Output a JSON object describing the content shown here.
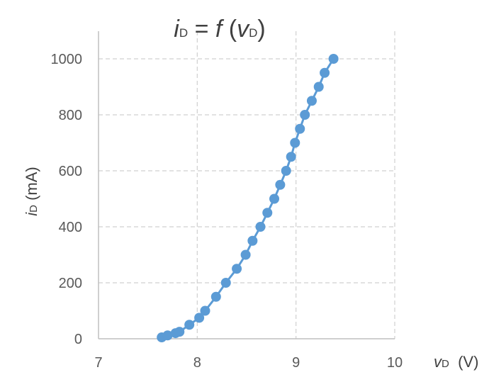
{
  "chart_data": {
    "type": "scatter",
    "title": {
      "var": "i",
      "sub": "D",
      "rest": " = ",
      "fn": "f",
      "arg_open": " (",
      "arg_var": "v",
      "arg_sub": "D",
      "arg_close": ")"
    },
    "xlabel": {
      "var": "v",
      "sub": "D",
      "unit": "  (V)"
    },
    "ylabel": {
      "var": "i",
      "sub": "D",
      "unit": " (mA)"
    },
    "xlim": [
      7,
      10
    ],
    "ylim": [
      0,
      1000
    ],
    "xticks": [
      7,
      8,
      9,
      10
    ],
    "yticks": [
      0,
      200,
      400,
      600,
      800,
      1000
    ],
    "grid": true,
    "line_color": "#5b9bd5",
    "grid_color": "#d0d0d0",
    "series": [
      {
        "x": [
          7.64,
          7.7,
          7.78,
          7.82,
          7.92,
          8.02,
          8.08,
          8.19,
          8.29,
          8.4,
          8.49,
          8.56,
          8.64,
          8.71,
          8.78,
          8.84,
          8.9,
          8.95,
          8.99,
          9.04,
          9.09,
          9.16,
          9.23,
          9.29,
          9.38
        ],
        "y": [
          5,
          12,
          20,
          25,
          50,
          75,
          100,
          150,
          200,
          250,
          300,
          350,
          400,
          450,
          500,
          550,
          600,
          650,
          700,
          750,
          800,
          850,
          900,
          950,
          1000
        ]
      }
    ]
  }
}
